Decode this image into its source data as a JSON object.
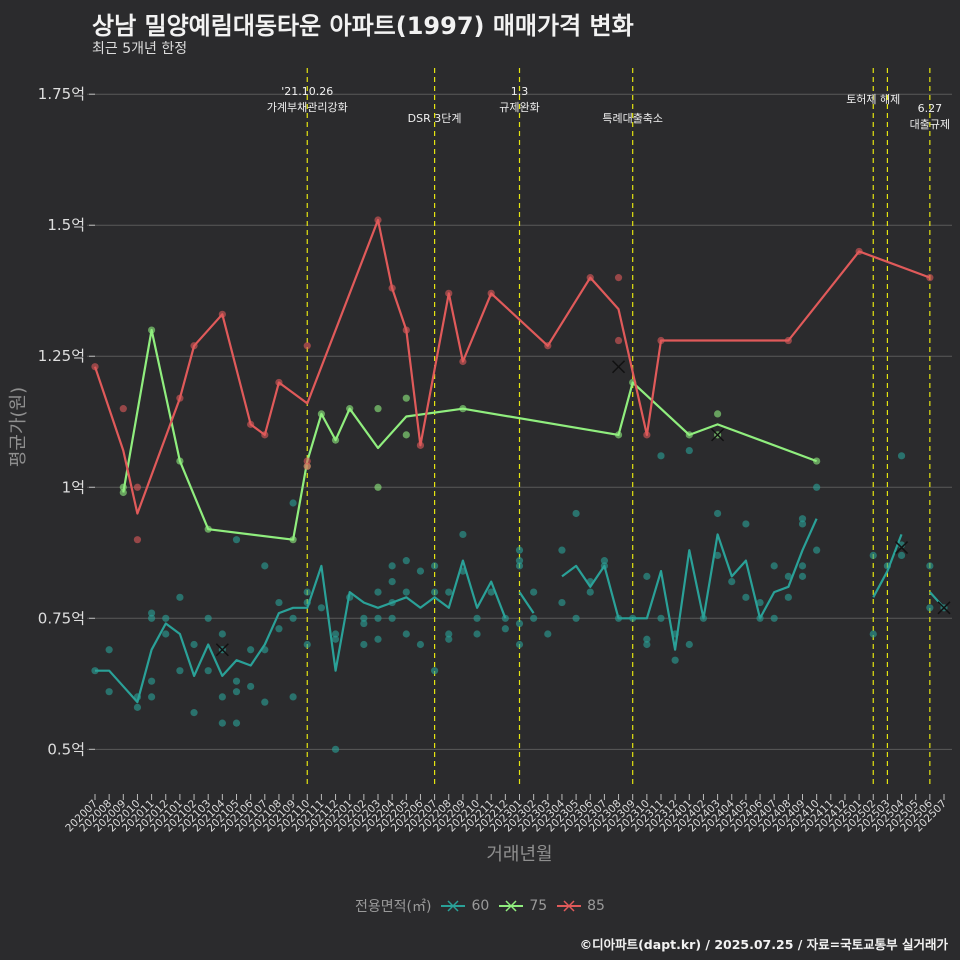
{
  "title": "상남 밀양예림대동타운 아파트(1997) 매매가격 변화",
  "subtitle": "최근 5개년 한정",
  "caption": "©디아파트(dapt.kr) / 2025.07.25 / 자료=국토교통부 실거래가",
  "chart_data": {
    "type": "line",
    "xlabel": "거래년월",
    "ylabel": "평균가(원)",
    "ylim": [
      0.43,
      1.8
    ],
    "y_ticks": [
      {
        "v": 0.5,
        "label": "0.5억"
      },
      {
        "v": 0.75,
        "label": "0.75억"
      },
      {
        "v": 1.0,
        "label": "1억"
      },
      {
        "v": 1.25,
        "label": "1.25억"
      },
      {
        "v": 1.5,
        "label": "1.5억"
      },
      {
        "v": 1.75,
        "label": "1.75억"
      }
    ],
    "x_labels": [
      "202007",
      "202008",
      "202009",
      "202010",
      "202011",
      "202012",
      "202101",
      "202102",
      "202103",
      "202104",
      "202105",
      "202106",
      "202107",
      "202108",
      "202109",
      "202110",
      "202111",
      "202112",
      "202201",
      "202202",
      "202203",
      "202204",
      "202205",
      "202206",
      "202207",
      "202208",
      "202209",
      "202210",
      "202211",
      "202212",
      "202301",
      "202302",
      "202303",
      "202304",
      "202305",
      "202306",
      "202307",
      "202308",
      "202309",
      "202310",
      "202311",
      "202312",
      "202401",
      "202402",
      "202403",
      "202404",
      "202405",
      "202406",
      "202407",
      "202408",
      "202409",
      "202410",
      "202411",
      "202412",
      "202501",
      "202502",
      "202503",
      "202504",
      "202505",
      "202506",
      "202507"
    ],
    "legend_title": "전용면적(㎡)",
    "events": [
      {
        "x": 15.0,
        "lines": [
          "'21.10.26",
          "가계부채관리강화"
        ]
      },
      {
        "x": 24.0,
        "lines": [
          "DSR 3단계"
        ]
      },
      {
        "x": 30.0,
        "lines": [
          "1.3",
          "규제완화"
        ]
      },
      {
        "x": 38.0,
        "lines": [
          "특례대출축소"
        ]
      },
      {
        "x": 55.0,
        "lines": [
          "토허제 해제"
        ]
      },
      {
        "x": 56.0,
        "lines": []
      },
      {
        "x": 59.0,
        "lines": [
          "6.27",
          "대출규제"
        ]
      }
    ],
    "series": [
      {
        "name": "60",
        "color": "#2aa198",
        "line": [
          [
            0,
            0.65
          ],
          [
            1,
            0.65
          ],
          [
            3,
            0.59
          ],
          [
            4,
            0.69
          ],
          [
            5,
            0.74
          ],
          [
            6,
            0.72
          ],
          [
            7,
            0.64
          ],
          [
            8,
            0.7
          ],
          [
            9,
            0.64
          ],
          [
            10,
            0.67
          ],
          [
            11,
            0.66
          ],
          [
            12,
            0.7
          ],
          [
            13,
            0.76
          ],
          [
            14,
            0.77
          ],
          [
            15,
            0.77
          ],
          [
            16,
            0.85
          ],
          [
            17,
            0.65
          ],
          [
            18,
            0.8
          ],
          [
            19,
            0.78
          ],
          [
            20,
            0.77
          ],
          [
            21,
            0.78
          ],
          [
            22,
            0.79
          ],
          [
            23,
            0.77
          ],
          [
            24,
            0.79
          ],
          [
            25,
            0.77
          ],
          [
            26,
            0.86
          ],
          [
            27,
            0.77
          ],
          [
            28,
            0.82
          ],
          [
            29,
            0.75
          ],
          null,
          [
            30,
            0.8
          ],
          [
            31,
            0.76
          ],
          null,
          [
            33,
            0.83
          ],
          [
            34,
            0.85
          ],
          [
            35,
            0.81
          ],
          [
            36,
            0.85
          ],
          [
            37,
            0.75
          ],
          [
            38,
            0.75
          ],
          [
            39,
            0.75
          ],
          [
            40,
            0.84
          ],
          [
            41,
            0.69
          ],
          [
            42,
            0.88
          ],
          [
            43,
            0.75
          ],
          [
            44,
            0.91
          ],
          [
            45,
            0.83
          ],
          [
            46,
            0.86
          ],
          [
            47,
            0.75
          ],
          [
            48,
            0.8
          ],
          [
            49,
            0.81
          ],
          [
            50,
            0.88
          ],
          [
            51,
            0.94
          ],
          null,
          [
            55,
            0.79
          ],
          [
            56,
            0.84
          ],
          [
            57,
            0.91
          ],
          null,
          [
            59,
            0.8
          ],
          [
            60,
            0.77
          ]
        ],
        "points": [
          [
            0,
            0.65
          ],
          [
            1,
            0.69
          ],
          [
            1,
            0.61
          ],
          [
            3,
            0.58
          ],
          [
            3,
            0.6
          ],
          [
            4,
            0.63
          ],
          [
            4,
            0.6
          ],
          [
            4,
            0.75
          ],
          [
            4,
            0.76
          ],
          [
            5,
            0.75
          ],
          [
            5,
            0.72
          ],
          [
            6,
            0.65
          ],
          [
            6,
            0.79
          ],
          [
            7,
            0.7
          ],
          [
            7,
            0.57
          ],
          [
            8,
            0.65
          ],
          [
            8,
            0.75
          ],
          [
            9,
            0.72
          ],
          [
            9,
            0.69
          ],
          [
            9,
            0.55
          ],
          [
            9,
            0.6
          ],
          [
            10,
            0.55
          ],
          [
            10,
            0.63
          ],
          [
            10,
            0.61
          ],
          [
            10,
            0.9
          ],
          [
            11,
            0.69
          ],
          [
            11,
            0.62
          ],
          [
            12,
            0.59
          ],
          [
            12,
            0.69
          ],
          [
            12,
            0.85
          ],
          [
            13,
            0.78
          ],
          [
            13,
            0.73
          ],
          [
            14,
            0.97
          ],
          [
            14,
            0.75
          ],
          [
            14,
            0.6
          ],
          [
            15,
            0.78
          ],
          [
            15,
            0.7
          ],
          [
            15,
            0.8
          ],
          [
            16,
            0.77
          ],
          [
            17,
            0.72
          ],
          [
            17,
            0.5
          ],
          [
            17,
            0.71
          ],
          [
            18,
            0.79
          ],
          [
            19,
            0.75
          ],
          [
            19,
            0.74
          ],
          [
            19,
            0.7
          ],
          [
            20,
            0.8
          ],
          [
            20,
            0.75
          ],
          [
            20,
            0.71
          ],
          [
            21,
            0.85
          ],
          [
            21,
            0.82
          ],
          [
            21,
            0.75
          ],
          [
            21,
            0.78
          ],
          [
            22,
            0.86
          ],
          [
            22,
            0.8
          ],
          [
            22,
            0.72
          ],
          [
            23,
            0.84
          ],
          [
            23,
            0.7
          ],
          [
            24,
            0.85
          ],
          [
            24,
            0.8
          ],
          [
            24,
            0.65
          ],
          [
            25,
            0.8
          ],
          [
            25,
            0.72
          ],
          [
            25,
            0.71
          ],
          [
            26,
            0.84
          ],
          [
            26,
            0.91
          ],
          [
            27,
            0.75
          ],
          [
            27,
            0.72
          ],
          [
            28,
            0.8
          ],
          [
            29,
            0.73
          ],
          [
            29,
            0.75
          ],
          [
            30,
            0.88
          ],
          [
            30,
            0.86
          ],
          [
            30,
            0.85
          ],
          [
            30,
            0.7
          ],
          [
            30,
            0.74
          ],
          [
            31,
            0.75
          ],
          [
            31,
            0.8
          ],
          [
            32,
            0.72
          ],
          [
            33,
            0.88
          ],
          [
            33,
            0.78
          ],
          [
            34,
            0.95
          ],
          [
            34,
            0.75
          ],
          [
            35,
            0.8
          ],
          [
            35,
            0.82
          ],
          [
            36,
            0.85
          ],
          [
            36,
            0.86
          ],
          [
            37,
            0.75
          ],
          [
            38,
            0.75
          ],
          [
            39,
            0.71
          ],
          [
            39,
            0.7
          ],
          [
            39,
            0.83
          ],
          [
            40,
            0.75
          ],
          [
            40,
            1.06
          ],
          [
            41,
            0.67
          ],
          [
            41,
            0.72
          ],
          [
            42,
            1.07
          ],
          [
            42,
            0.7
          ],
          [
            43,
            0.75
          ],
          [
            44,
            0.95
          ],
          [
            44,
            0.87
          ],
          [
            45,
            0.82
          ],
          [
            46,
            0.93
          ],
          [
            46,
            0.79
          ],
          [
            47,
            0.78
          ],
          [
            47,
            0.75
          ],
          [
            48,
            0.85
          ],
          [
            48,
            0.75
          ],
          [
            49,
            0.79
          ],
          [
            49,
            0.83
          ],
          [
            50,
            0.93
          ],
          [
            50,
            0.85
          ],
          [
            50,
            0.83
          ],
          [
            50,
            0.94
          ],
          [
            51,
            1.0
          ],
          [
            51,
            0.88
          ],
          [
            55,
            0.87
          ],
          [
            55,
            0.72
          ],
          [
            56,
            0.85
          ],
          [
            57,
            1.06
          ],
          [
            57,
            0.87
          ],
          [
            57,
            0.89
          ],
          [
            59,
            0.85
          ],
          [
            59,
            0.77
          ],
          [
            60,
            0.77
          ]
        ],
        "crosses": [
          [
            9,
            0.69
          ],
          [
            57,
            0.885
          ],
          [
            60,
            0.77
          ]
        ]
      },
      {
        "name": "75",
        "color": "#90ee7e",
        "line": [
          [
            2,
            0.99
          ],
          [
            4,
            1.3
          ],
          [
            6,
            1.05
          ],
          [
            8,
            0.92
          ],
          [
            14,
            0.9
          ],
          [
            15,
            1.05
          ],
          [
            16,
            1.14
          ],
          [
            17,
            1.09
          ],
          [
            18,
            1.15
          ],
          [
            20,
            1.075
          ],
          [
            22,
            1.135
          ],
          [
            26,
            1.15
          ],
          [
            37,
            1.1
          ],
          [
            38,
            1.2
          ],
          [
            42,
            1.1
          ],
          [
            44,
            1.12
          ],
          [
            51,
            1.05
          ]
        ],
        "points": [
          [
            2,
            0.99
          ],
          [
            2,
            1.0
          ],
          [
            4,
            1.3
          ],
          [
            6,
            1.05
          ],
          [
            8,
            0.92
          ],
          [
            14,
            0.9
          ],
          [
            15,
            1.04
          ],
          [
            16,
            1.14
          ],
          [
            17,
            1.09
          ],
          [
            18,
            1.15
          ],
          [
            20,
            1.15
          ],
          [
            20,
            1.0
          ],
          [
            22,
            1.17
          ],
          [
            22,
            1.1
          ],
          [
            26,
            1.15
          ],
          [
            37,
            1.1
          ],
          [
            38,
            1.2
          ],
          [
            42,
            1.1
          ],
          [
            44,
            1.1
          ],
          [
            44,
            1.14
          ],
          [
            51,
            1.05
          ]
        ],
        "crosses": [
          [
            44,
            1.1
          ]
        ]
      },
      {
        "name": "85",
        "color": "#e05a5a",
        "line": [
          [
            0,
            1.23
          ],
          [
            2,
            1.07
          ],
          [
            3,
            0.95
          ],
          [
            6,
            1.17
          ],
          [
            7,
            1.27
          ],
          [
            9,
            1.33
          ],
          [
            11,
            1.12
          ],
          [
            12,
            1.1
          ],
          [
            13,
            1.2
          ],
          [
            15,
            1.16
          ],
          [
            20,
            1.51
          ],
          [
            21,
            1.38
          ],
          [
            22,
            1.3
          ],
          [
            23,
            1.08
          ],
          [
            25,
            1.37
          ],
          [
            26,
            1.24
          ],
          [
            28,
            1.37
          ],
          [
            32,
            1.27
          ],
          [
            35,
            1.4
          ],
          [
            37,
            1.34
          ],
          [
            39,
            1.1
          ],
          [
            40,
            1.28
          ],
          [
            49,
            1.28
          ],
          [
            54,
            1.45
          ],
          [
            59,
            1.4
          ]
        ],
        "points": [
          [
            0,
            1.23
          ],
          [
            2,
            1.15
          ],
          [
            3,
            1.0
          ],
          [
            3,
            0.9
          ],
          [
            6,
            1.17
          ],
          [
            7,
            1.27
          ],
          [
            9,
            1.33
          ],
          [
            11,
            1.12
          ],
          [
            12,
            1.1
          ],
          [
            13,
            1.2
          ],
          [
            15,
            1.27
          ],
          [
            15,
            1.05
          ],
          [
            15,
            1.04
          ],
          [
            20,
            1.51
          ],
          [
            21,
            1.38
          ],
          [
            22,
            1.3
          ],
          [
            23,
            1.08
          ],
          [
            25,
            1.37
          ],
          [
            26,
            1.24
          ],
          [
            28,
            1.37
          ],
          [
            32,
            1.27
          ],
          [
            35,
            1.4
          ],
          [
            37,
            1.4
          ],
          [
            37,
            1.28
          ],
          [
            39,
            1.1
          ],
          [
            40,
            1.28
          ],
          [
            49,
            1.28
          ],
          [
            54,
            1.45
          ],
          [
            59,
            1.4
          ]
        ],
        "crosses": [
          [
            37,
            1.23
          ]
        ]
      }
    ]
  }
}
